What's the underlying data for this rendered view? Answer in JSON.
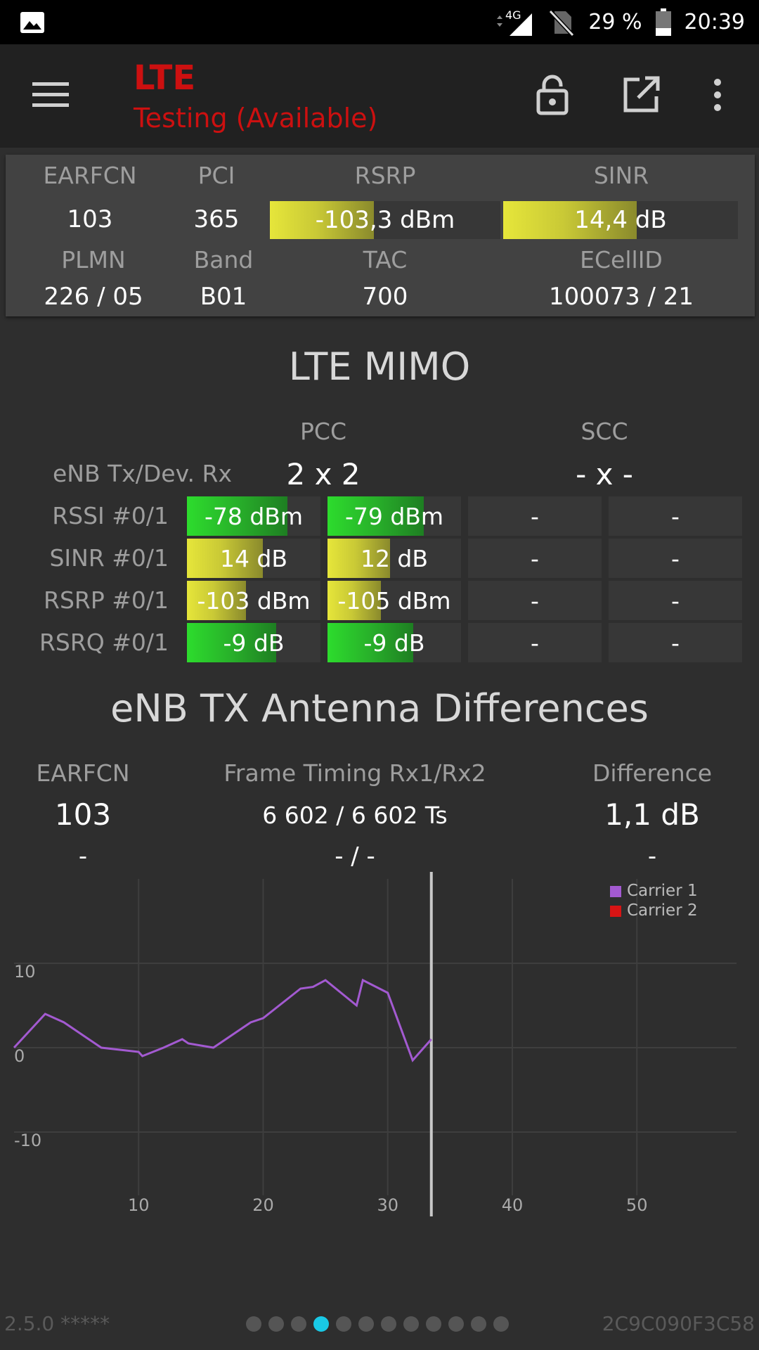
{
  "statusbar": {
    "battery": "29 %",
    "time": "20:39",
    "network": "4G"
  },
  "appbar": {
    "title": "LTE",
    "subtitle": "Testing (Available)"
  },
  "cell_info": {
    "labels": {
      "earfcn": "EARFCN",
      "pci": "PCI",
      "rsrp": "RSRP",
      "sinr": "SINR",
      "plmn": "PLMN",
      "band": "Band",
      "tac": "TAC",
      "ecellid": "ECellID"
    },
    "earfcn": "103",
    "pci": "365",
    "rsrp": {
      "text": "-103,3 dBm",
      "level": 0.45
    },
    "sinr": {
      "text": "14,4 dB",
      "level": 0.57
    },
    "plmn": "226 / 05",
    "band": "B01",
    "tac": "700",
    "ecellid": "100073 / 21"
  },
  "mimo": {
    "title": "LTE MIMO",
    "pcc_label": "PCC",
    "scc_label": "SCC",
    "enb_label": "eNB Tx/Dev. Rx",
    "pcc_value": "2 x 2",
    "scc_value": "- x -",
    "rows": [
      {
        "label": "RSSI #0/1",
        "color": "green",
        "cells": [
          {
            "text": "-78 dBm",
            "level": 0.75
          },
          {
            "text": "-79 dBm",
            "level": 0.72
          },
          {
            "text": "-"
          },
          {
            "text": "-"
          }
        ]
      },
      {
        "label": "SINR #0/1",
        "color": "yellow",
        "cells": [
          {
            "text": "14 dB",
            "level": 0.57
          },
          {
            "text": "12 dB",
            "level": 0.47
          },
          {
            "text": "-"
          },
          {
            "text": "-"
          }
        ]
      },
      {
        "label": "RSRP #0/1",
        "color": "yellow",
        "cells": [
          {
            "text": "-103 dBm",
            "level": 0.44
          },
          {
            "text": "-105 dBm",
            "level": 0.4
          },
          {
            "text": "-"
          },
          {
            "text": "-"
          }
        ]
      },
      {
        "label": "RSRQ #0/1",
        "color": "green",
        "cells": [
          {
            "text": "-9 dB",
            "level": 0.67
          },
          {
            "text": "-9 dB",
            "level": 0.64
          },
          {
            "text": "-"
          },
          {
            "text": "-"
          }
        ]
      }
    ]
  },
  "antenna": {
    "title": "eNB TX Antenna Differences",
    "labels": {
      "earfcn": "EARFCN",
      "timing": "Frame Timing Rx1/Rx2",
      "difference": "Difference"
    },
    "row1": {
      "earfcn": "103",
      "timing": "6 602 / 6 602 Ts",
      "difference": "1,1 dB"
    },
    "row2": {
      "earfcn": "-",
      "timing": "- / -",
      "difference": "-"
    }
  },
  "chart_data": {
    "type": "line",
    "xlim": [
      0,
      58
    ],
    "ylim": [
      -20,
      20
    ],
    "x_ticks": [
      10,
      20,
      30,
      40,
      50
    ],
    "y_ticks": [
      10,
      0,
      -10
    ],
    "legend_position": "top-right",
    "cursor_x": 33.5,
    "series": [
      {
        "name": "Carrier 1",
        "color": "#a35ad1",
        "points": [
          [
            0,
            0
          ],
          [
            2.5,
            4
          ],
          [
            4,
            3
          ],
          [
            6,
            1
          ],
          [
            7,
            0
          ],
          [
            10,
            -0.5
          ],
          [
            10.3,
            -1
          ],
          [
            12,
            0
          ],
          [
            13.5,
            1
          ],
          [
            14,
            0.5
          ],
          [
            16,
            0
          ],
          [
            19,
            3
          ],
          [
            20,
            3.5
          ],
          [
            23,
            7
          ],
          [
            24,
            7.2
          ],
          [
            25,
            8
          ],
          [
            27.5,
            5
          ],
          [
            28,
            8
          ],
          [
            30,
            6.5
          ],
          [
            32,
            -1.5
          ],
          [
            33.5,
            1
          ]
        ]
      },
      {
        "name": "Carrier 2",
        "color": "#d81414",
        "points": []
      }
    ]
  },
  "footer": {
    "version": "2.5.0 *****",
    "device_id": "2C9C090F3C58",
    "page_count": 12,
    "active_page": 4
  }
}
